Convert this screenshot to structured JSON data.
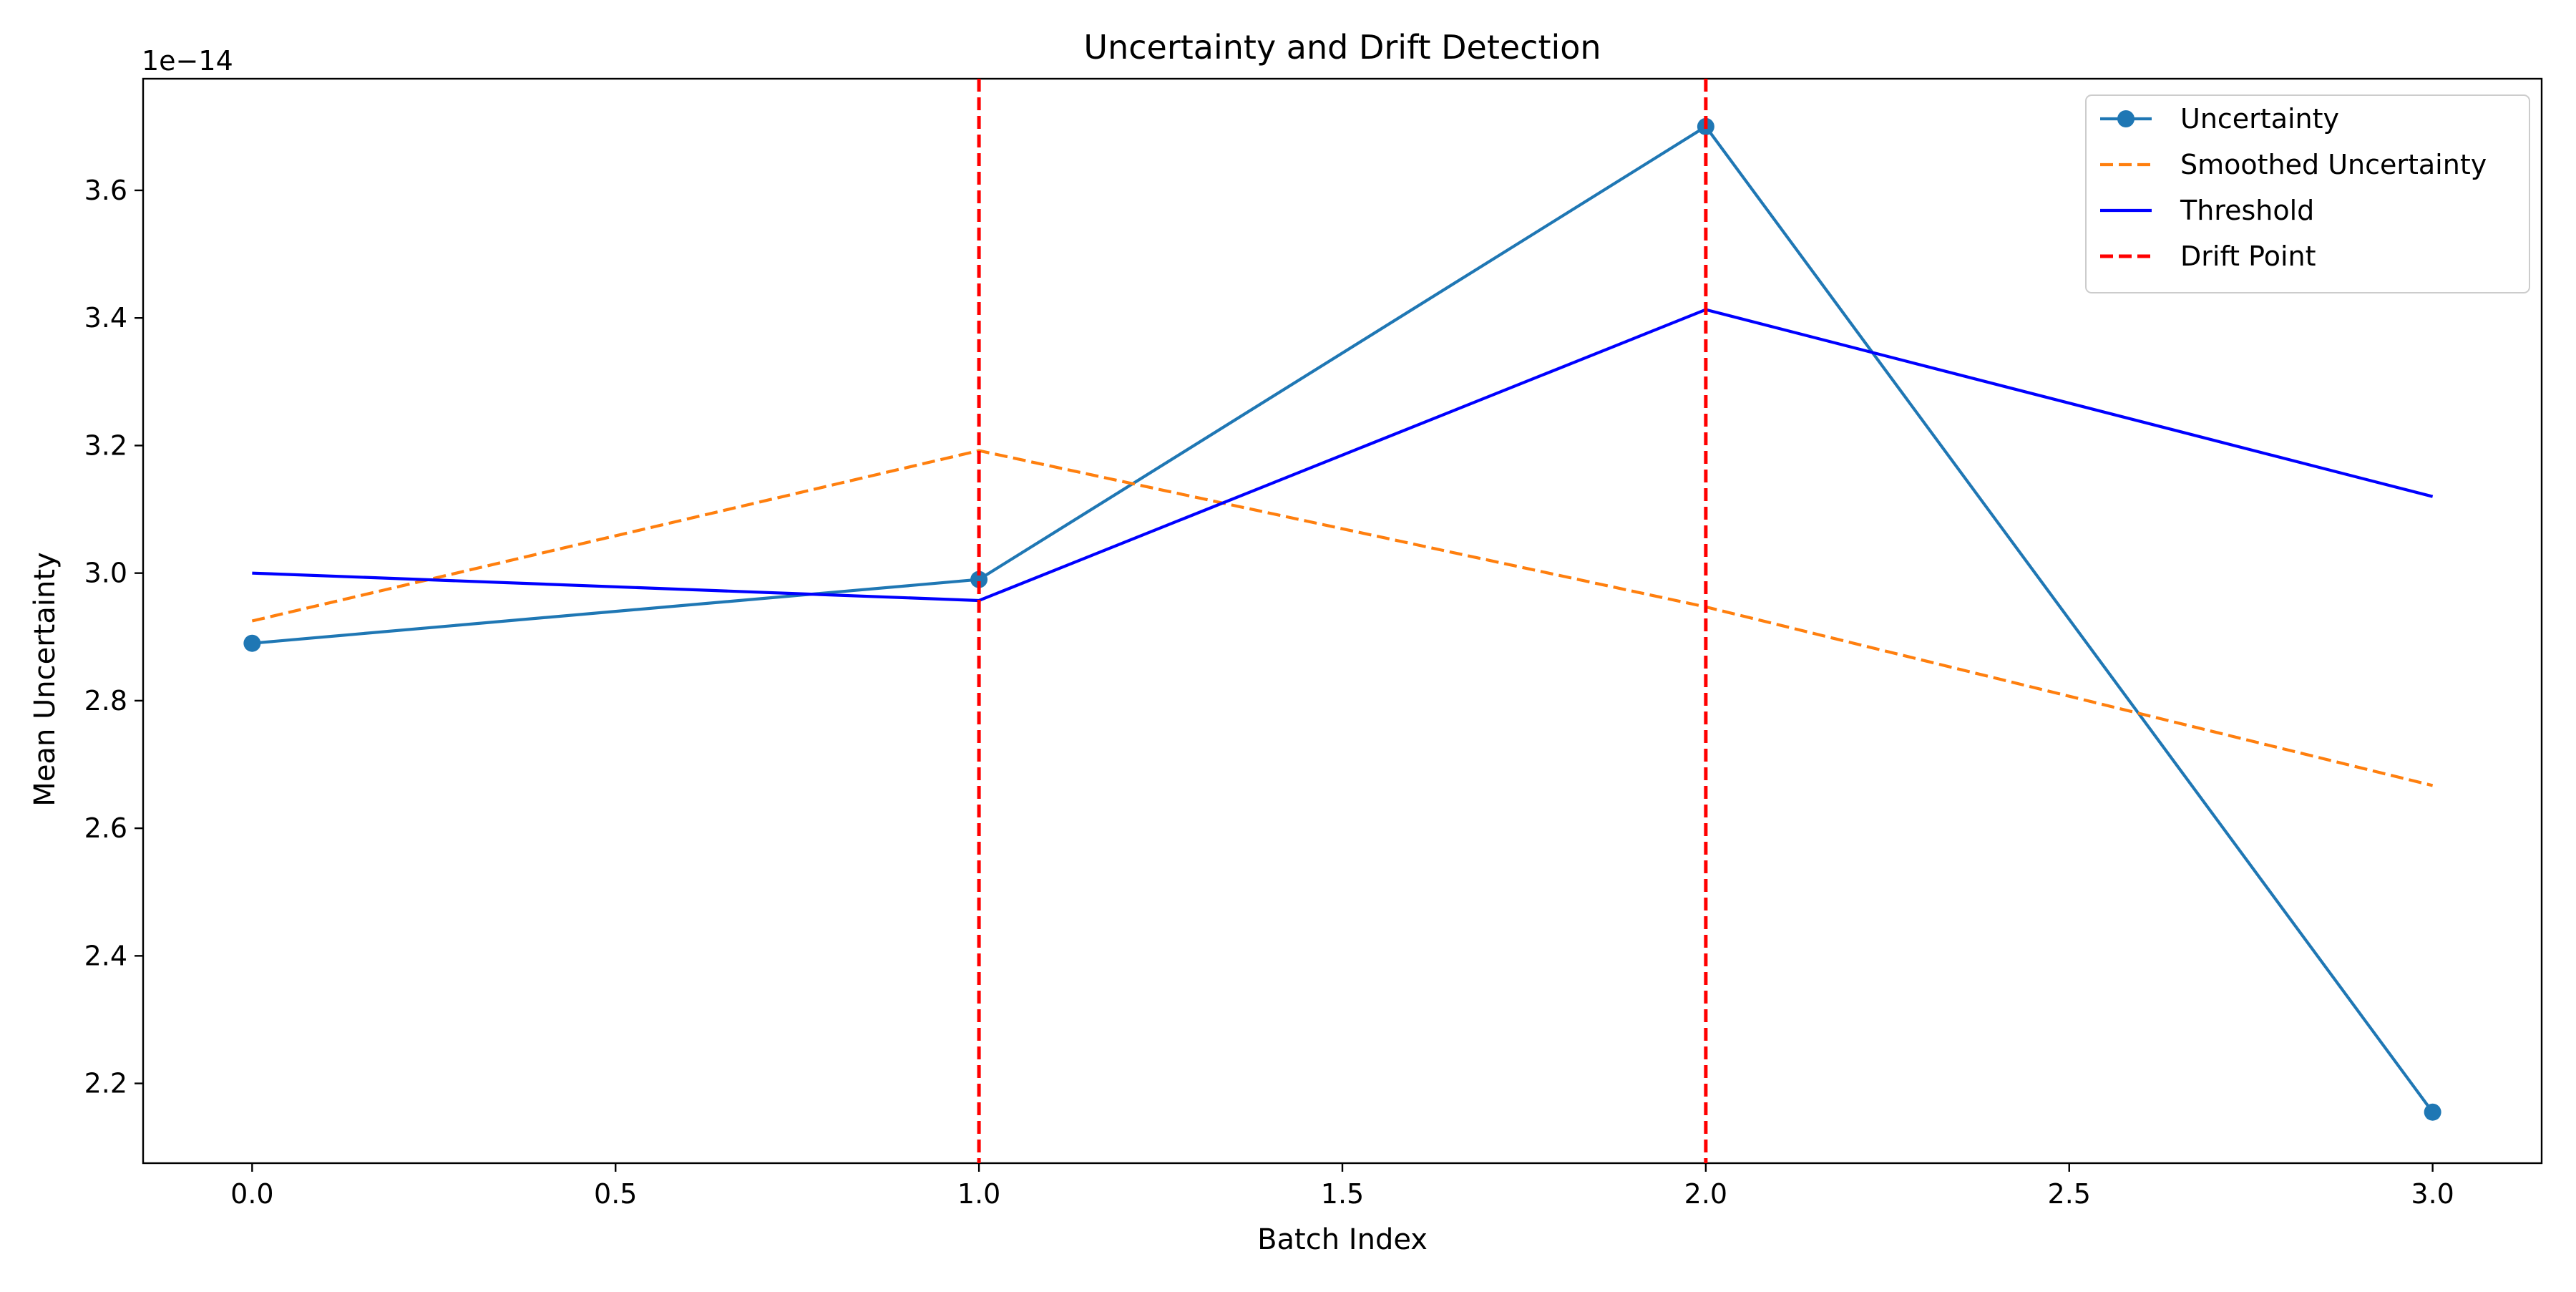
{
  "chart_data": {
    "type": "line",
    "title": "Uncertainty and Drift Detection",
    "xlabel": "Batch Index",
    "ylabel": "Mean Uncertainty",
    "y_offset_label": "1e−14",
    "xlim": [
      -0.15,
      3.15
    ],
    "ylim": [
      2.075,
      3.775
    ],
    "xticks": [
      0.0,
      0.5,
      1.0,
      1.5,
      2.0,
      2.5,
      3.0
    ],
    "xtick_labels": [
      "0.0",
      "0.5",
      "1.0",
      "1.5",
      "2.0",
      "2.5",
      "3.0"
    ],
    "yticks": [
      2.2,
      2.4,
      2.6,
      2.8,
      3.0,
      3.2,
      3.4,
      3.6
    ],
    "ytick_labels": [
      "2.2",
      "2.4",
      "2.6",
      "2.8",
      "3.0",
      "3.2",
      "3.4",
      "3.6"
    ],
    "x": [
      0,
      1,
      2,
      3
    ],
    "grid": false,
    "legend_position": "top-right",
    "series": [
      {
        "name": "Uncertainty",
        "values": [
          2.89,
          2.99,
          3.7,
          2.155
        ],
        "color": "#1f77b4",
        "style": "solid",
        "marker": "circle"
      },
      {
        "name": "Smoothed Uncertainty",
        "values": [
          2.925,
          3.192,
          2.947,
          2.667
        ],
        "color": "#ff7f0e",
        "style": "dashed"
      },
      {
        "name": "Threshold",
        "values": [
          3.0,
          2.957,
          3.413,
          3.12
        ],
        "color": "#0000ff",
        "style": "solid"
      }
    ],
    "drift_points": {
      "name": "Drift Point",
      "x": [
        1,
        2
      ],
      "color": "#ff0000",
      "style": "dashed"
    }
  }
}
